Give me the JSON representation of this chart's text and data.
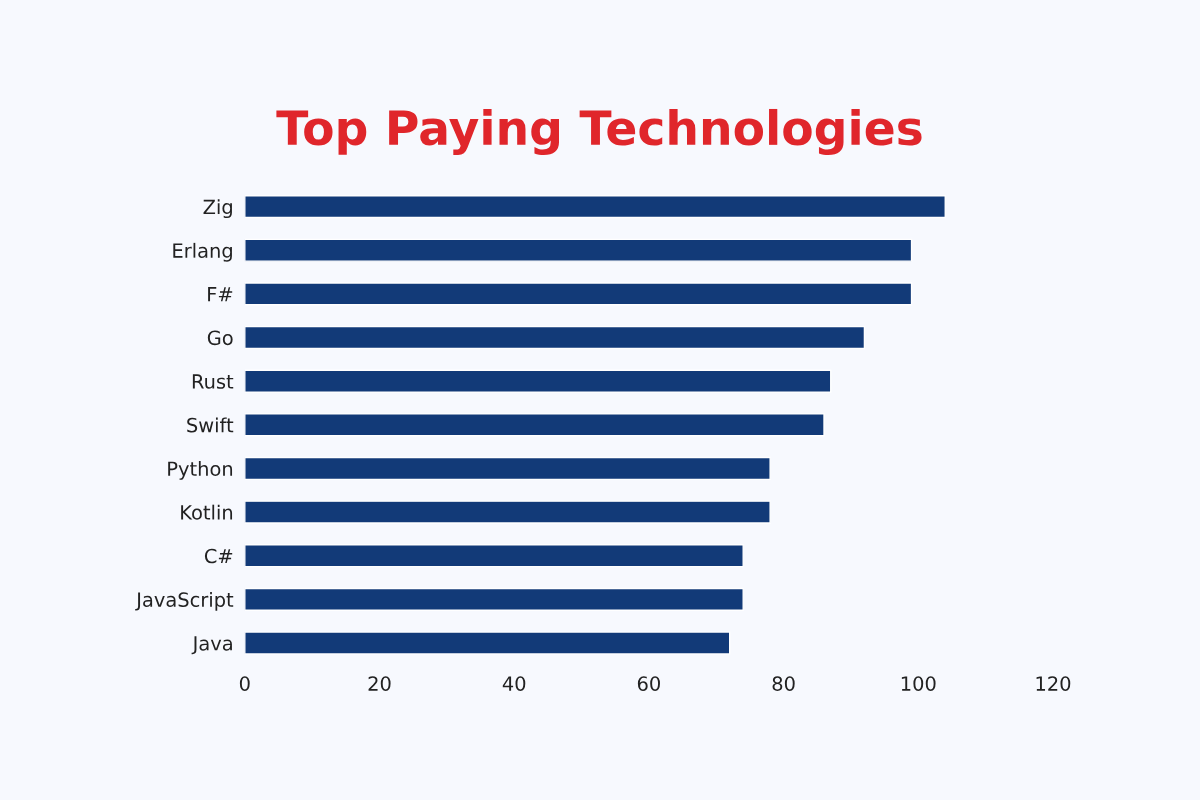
{
  "chart_data": {
    "type": "bar",
    "orientation": "horizontal",
    "title": "Top Paying Technologies",
    "categories": [
      "Zig",
      "Erlang",
      "F#",
      "Go",
      "Rust",
      "Swift",
      "Python",
      "Kotlin",
      "C#",
      "JavaScript",
      "Java"
    ],
    "values": [
      104,
      99,
      99,
      92,
      87,
      86,
      78,
      78,
      74,
      74,
      72
    ],
    "color": "#123a78",
    "xlim": [
      0,
      120
    ],
    "xticks": [
      0,
      20,
      40,
      60,
      80,
      100,
      120
    ],
    "grid": false
  }
}
